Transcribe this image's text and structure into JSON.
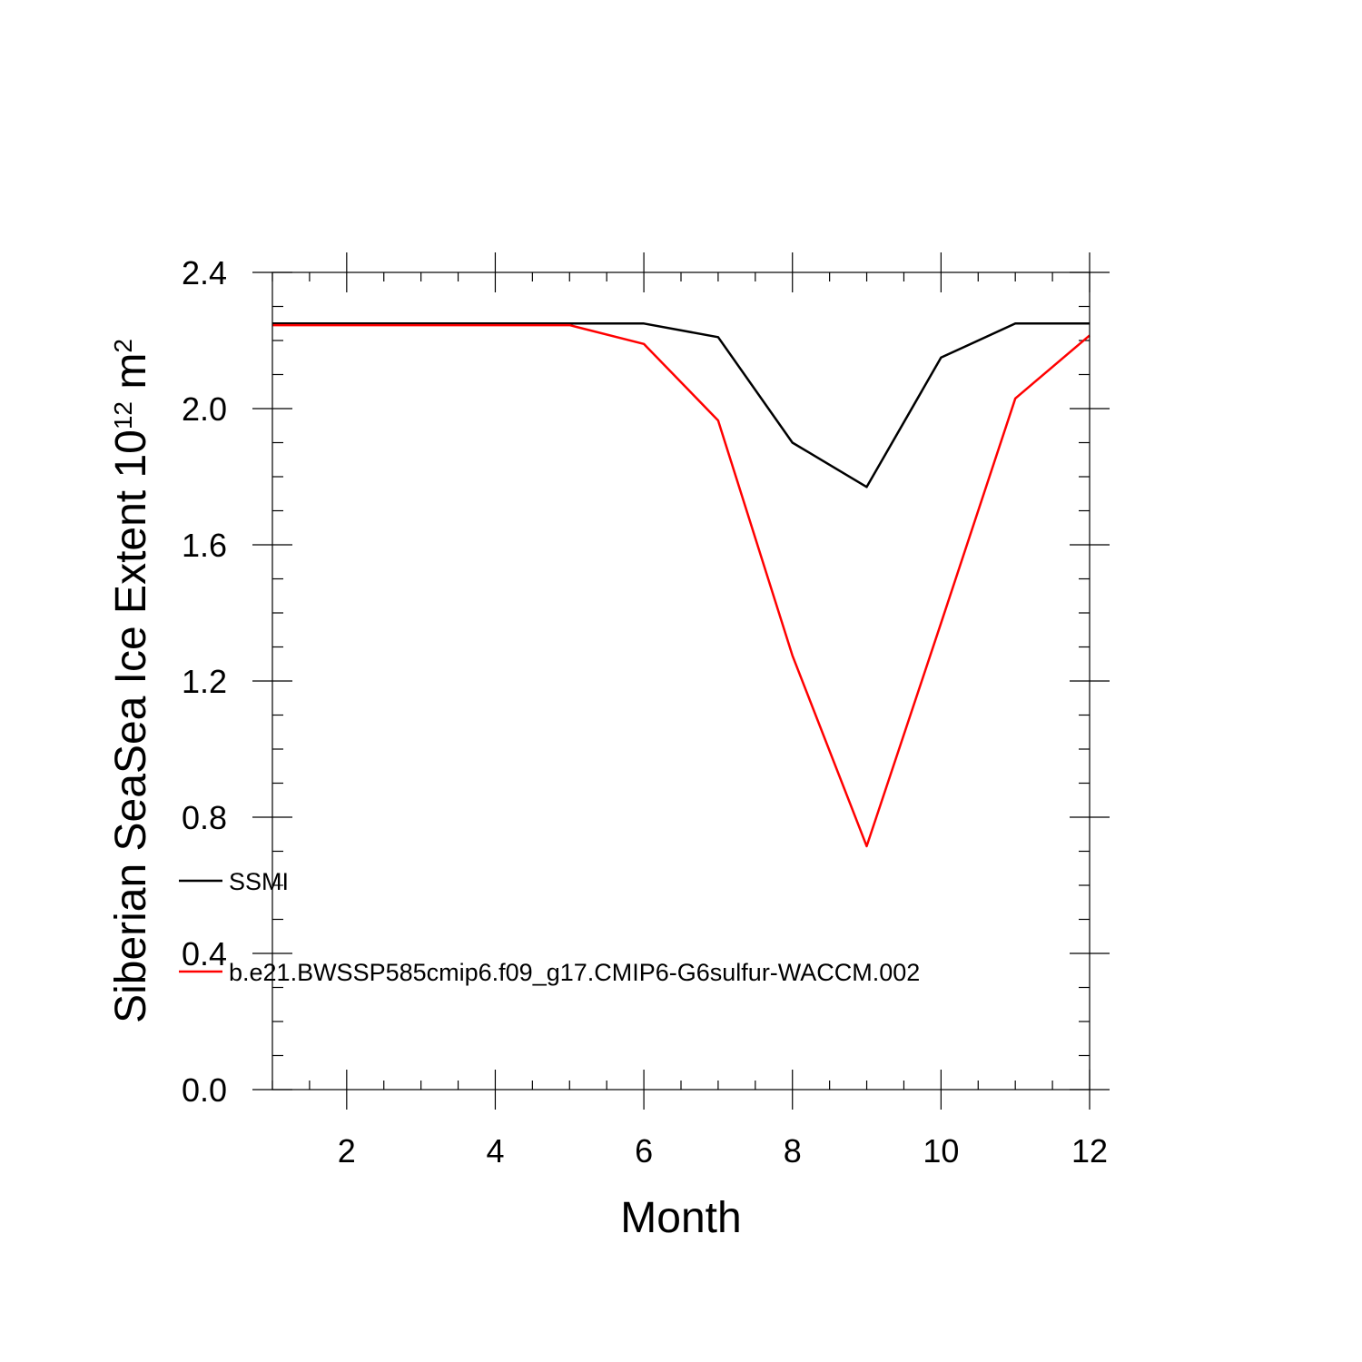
{
  "chart_data": {
    "type": "line",
    "xlabel": "Month",
    "ylabel": {
      "main": "Siberian SeaSea Ice Extent 10",
      "sup1": "12",
      "unit": " m",
      "sup2": "2"
    },
    "xlim": [
      1,
      12
    ],
    "ylim": [
      0.0,
      2.4
    ],
    "x_ticks": [
      2,
      4,
      6,
      8,
      10,
      12
    ],
    "x_tick_labels": [
      "2",
      "4",
      "6",
      "8",
      "10",
      "12"
    ],
    "y_ticks": [
      0.0,
      0.4,
      0.8,
      1.2,
      1.6,
      2.0,
      2.4
    ],
    "y_tick_labels": [
      "0.0",
      "0.4",
      "0.8",
      "1.2",
      "1.6",
      "2.0",
      "2.4"
    ],
    "x": [
      1,
      2,
      3,
      4,
      5,
      6,
      7,
      8,
      9,
      10,
      11,
      12
    ],
    "grid": false,
    "legend_position": "left",
    "series": [
      {
        "name": "SSMI",
        "color": "#000000",
        "values": [
          2.25,
          2.25,
          2.25,
          2.25,
          2.25,
          2.25,
          2.21,
          1.9,
          1.77,
          2.15,
          2.25,
          2.25
        ]
      },
      {
        "name": "b.e21.BWSSP585cmip6.f09_g17.CMIP6-G6sulfur-WACCM.002",
        "color": "#ff0000",
        "values": [
          2.245,
          2.245,
          2.245,
          2.245,
          2.245,
          2.19,
          1.965,
          1.275,
          0.715,
          1.37,
          2.03,
          2.215
        ]
      }
    ]
  }
}
